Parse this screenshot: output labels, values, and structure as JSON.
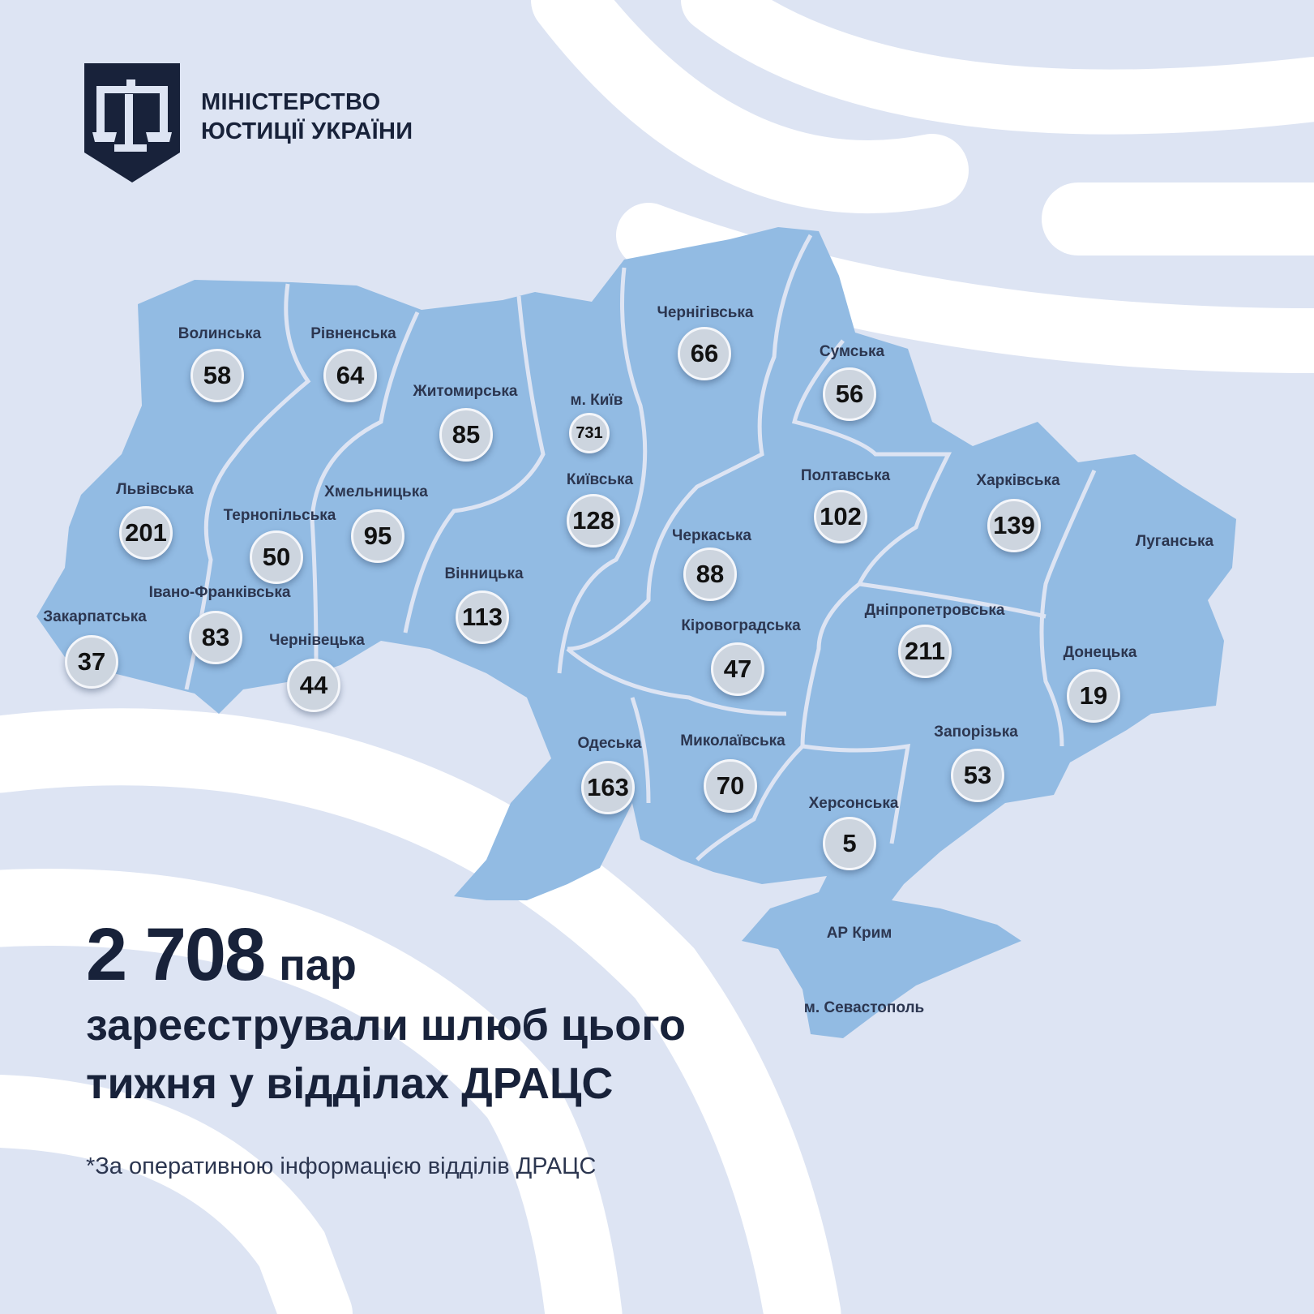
{
  "organization": {
    "line1": "МІНІСТЕРСТВО",
    "line2": "ЮСТИЦІЇ УКРАЇНИ",
    "logo_icon": "scales-shield-icon"
  },
  "colors": {
    "background": "#dde4f3",
    "map_fill": "#92bbe3",
    "dark": "#18223a",
    "bubble": "#cdd5df"
  },
  "regions": [
    {
      "name": "Волинська",
      "value": "58"
    },
    {
      "name": "Рівненська",
      "value": "64"
    },
    {
      "name": "Житомирська",
      "value": "85"
    },
    {
      "name": "м. Київ",
      "value": "731"
    },
    {
      "name": "Чернігівська",
      "value": "66"
    },
    {
      "name": "Сумська",
      "value": "56"
    },
    {
      "name": "Львівська",
      "value": "201"
    },
    {
      "name": "Тернопільська",
      "value": "50"
    },
    {
      "name": "Хмельницька",
      "value": "95"
    },
    {
      "name": "Київська",
      "value": "128"
    },
    {
      "name": "Полтавська",
      "value": "102"
    },
    {
      "name": "Харківська",
      "value": "139"
    },
    {
      "name": "Луганська",
      "value": null
    },
    {
      "name": "Черкаська",
      "value": "88"
    },
    {
      "name": "Вінницька",
      "value": "113"
    },
    {
      "name": "Івано-Франківська",
      "value": "83"
    },
    {
      "name": "Закарпатська",
      "value": "37"
    },
    {
      "name": "Чернівецька",
      "value": "44"
    },
    {
      "name": "Кіровоградська",
      "value": "47"
    },
    {
      "name": "Дніпропетровська",
      "value": "211"
    },
    {
      "name": "Донецька",
      "value": "19"
    },
    {
      "name": "Одеська",
      "value": "163"
    },
    {
      "name": "Миколаївська",
      "value": "70"
    },
    {
      "name": "Запорізька",
      "value": "53"
    },
    {
      "name": "Херсонська",
      "value": "5"
    },
    {
      "name": "АР Крим",
      "value": null
    },
    {
      "name": "м. Севастополь",
      "value": null
    }
  ],
  "headline": {
    "total": "2 708",
    "unit": "пар",
    "text": "зареєстрували шлюб цього тижня у відділах ДРАЦС"
  },
  "footnote": "*За оперативною інформацією відділів ДРАЦС"
}
